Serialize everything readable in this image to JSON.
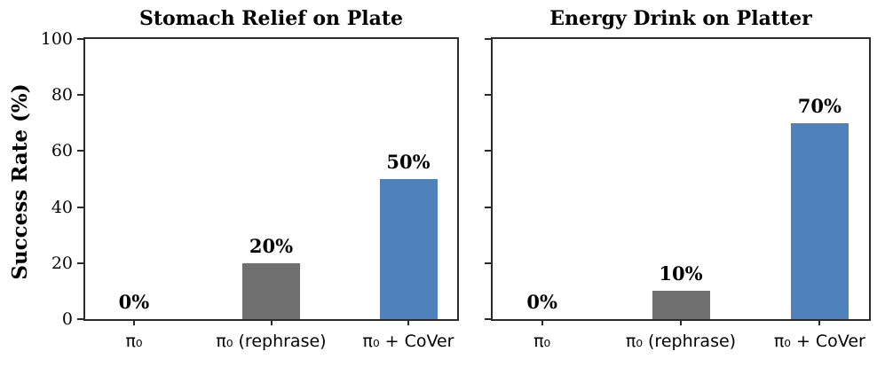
{
  "figure": {
    "background": "#ffffff",
    "ylabel": "Success Rate (%)"
  },
  "colors": {
    "baseline_bar": "#707070",
    "cover_bar": "#4f81bd",
    "axis": "#2b2b2b",
    "text": "#000000"
  },
  "chart_data": [
    {
      "type": "bar",
      "title": "Stomach Relief on Plate",
      "categories": [
        "π₀",
        "π₀ (rephrase)",
        "π₀ + CoVer"
      ],
      "values": [
        0,
        20,
        50
      ],
      "value_labels": [
        "0%",
        "20%",
        "50%"
      ],
      "bar_colors": [
        "#707070",
        "#707070",
        "#4f81bd"
      ],
      "ylabel": "Success Rate (%)",
      "ylim": [
        0,
        100
      ],
      "yticks": [
        0,
        20,
        40,
        60,
        80,
        100
      ],
      "ytick_labels": [
        "0",
        "20",
        "40",
        "60",
        "80",
        "100"
      ],
      "show_ytick_labels": true,
      "grid": false,
      "legend": null
    },
    {
      "type": "bar",
      "title": "Energy Drink on Platter",
      "categories": [
        "π₀",
        "π₀ (rephrase)",
        "π₀ + CoVer"
      ],
      "values": [
        0,
        10,
        70
      ],
      "value_labels": [
        "0%",
        "10%",
        "70%"
      ],
      "bar_colors": [
        "#707070",
        "#707070",
        "#4f81bd"
      ],
      "ylabel": "",
      "ylim": [
        0,
        100
      ],
      "yticks": [
        0,
        20,
        40,
        60,
        80,
        100
      ],
      "ytick_labels": [],
      "show_ytick_labels": false,
      "grid": false,
      "legend": null
    }
  ]
}
